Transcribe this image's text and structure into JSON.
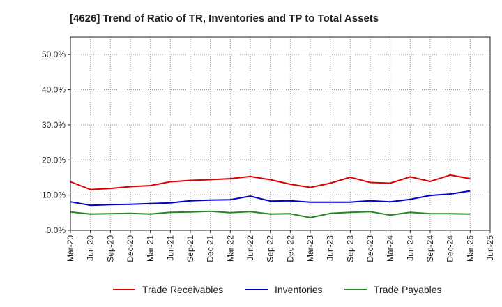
{
  "chart_data": {
    "type": "line",
    "title": "[4626]  Trend of Ratio of TR, Inventories and TP to Total Assets",
    "xlabel": "",
    "ylabel": "",
    "ylim": [
      0,
      55
    ],
    "yticks": [
      0,
      10,
      20,
      30,
      40,
      50
    ],
    "ytick_labels": [
      "0.0%",
      "10.0%",
      "20.0%",
      "30.0%",
      "40.0%",
      "50.0%"
    ],
    "x_tick_labels": [
      "Mar-20",
      "Jun-20",
      "Sep-20",
      "Dec-20",
      "Mar-21",
      "Jun-21",
      "Sep-21",
      "Dec-21",
      "Mar-22",
      "Jun-22",
      "Sep-22",
      "Dec-22",
      "Mar-23",
      "Jun-23",
      "Sep-23",
      "Dec-23",
      "Mar-24",
      "Jun-24",
      "Sep-24",
      "Dec-24",
      "Mar-25",
      "Jun-25"
    ],
    "x": [
      "Mar-20",
      "Jun-20",
      "Sep-20",
      "Dec-20",
      "Mar-21",
      "Jun-21",
      "Sep-21",
      "Dec-21",
      "Mar-22",
      "Jun-22",
      "Sep-22",
      "Dec-22",
      "Mar-23",
      "Jun-23",
      "Sep-23",
      "Dec-23",
      "Mar-24",
      "Jun-24",
      "Sep-24",
      "Dec-24",
      "Mar-25"
    ],
    "grid": true,
    "legend_position": "bottom",
    "series": [
      {
        "name": "Trade Receivables",
        "color": "#dd0000",
        "values": [
          13.8,
          11.6,
          11.9,
          12.4,
          12.7,
          13.8,
          14.2,
          14.4,
          14.7,
          15.3,
          14.4,
          13.1,
          12.2,
          13.4,
          15.1,
          13.6,
          13.4,
          15.2,
          13.9,
          15.7,
          14.7
        ]
      },
      {
        "name": "Inventories",
        "color": "#0000cc",
        "values": [
          8.1,
          7.1,
          7.3,
          7.4,
          7.6,
          7.8,
          8.4,
          8.6,
          8.7,
          9.7,
          8.3,
          8.4,
          8.0,
          8.0,
          8.0,
          8.4,
          8.1,
          8.8,
          9.9,
          10.3,
          11.2
        ]
      },
      {
        "name": "Trade Payables",
        "color": "#228822",
        "values": [
          5.2,
          4.6,
          4.7,
          4.8,
          4.6,
          5.1,
          5.2,
          5.4,
          5.0,
          5.3,
          4.6,
          4.7,
          3.6,
          4.8,
          5.1,
          5.3,
          4.3,
          5.1,
          4.7,
          4.7,
          4.6
        ]
      }
    ]
  }
}
